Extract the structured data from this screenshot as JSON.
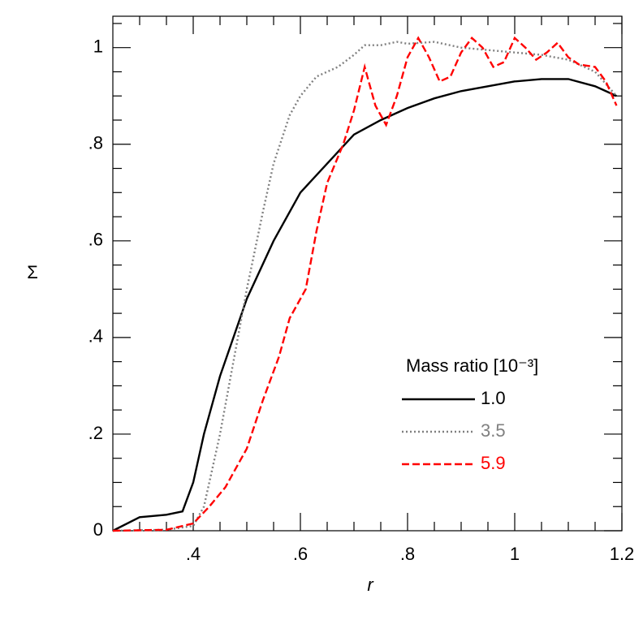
{
  "chart_data": {
    "type": "line",
    "x_label": "r",
    "y_label": "Σ",
    "legend_title": "Mass ratio [10⁻³]",
    "legend_position": "lower right",
    "xlim": [
      0.25,
      1.2
    ],
    "ylim": [
      0,
      1.065
    ],
    "xticks": [
      {
        "value": 0.4,
        "label": ".4"
      },
      {
        "value": 0.6,
        "label": ".6"
      },
      {
        "value": 0.8,
        "label": ".8"
      },
      1,
      1.2
    ],
    "yticks": [
      0,
      {
        "value": 0.2,
        "label": ".2"
      },
      {
        "value": 0.4,
        "label": ".4"
      },
      {
        "value": 0.6,
        "label": ".6"
      },
      {
        "value": 0.8,
        "label": ".8"
      },
      1
    ],
    "series": [
      {
        "name": "1.0",
        "color": "#000000",
        "style": "solid",
        "x": [
          0.25,
          0.3,
          0.35,
          0.38,
          0.4,
          0.42,
          0.45,
          0.5,
          0.55,
          0.6,
          0.65,
          0.7,
          0.75,
          0.8,
          0.85,
          0.9,
          0.95,
          1.0,
          1.05,
          1.1,
          1.15,
          1.19
        ],
        "values": [
          0,
          0.028,
          0.033,
          0.04,
          0.1,
          0.2,
          0.32,
          0.48,
          0.6,
          0.7,
          0.76,
          0.82,
          0.85,
          0.875,
          0.895,
          0.91,
          0.92,
          0.93,
          0.935,
          0.935,
          0.92,
          0.9
        ]
      },
      {
        "name": "3.5",
        "color": "#808080",
        "style": "dotted",
        "x": [
          0.25,
          0.35,
          0.4,
          0.42,
          0.45,
          0.48,
          0.5,
          0.53,
          0.55,
          0.58,
          0.6,
          0.63,
          0.67,
          0.7,
          0.72,
          0.75,
          0.78,
          0.8,
          0.85,
          0.9,
          0.95,
          1.0,
          1.05,
          1.1,
          1.15,
          1.19
        ],
        "values": [
          0,
          0.002,
          0.01,
          0.05,
          0.2,
          0.38,
          0.5,
          0.66,
          0.76,
          0.86,
          0.9,
          0.94,
          0.96,
          0.985,
          1.005,
          1.005,
          1.012,
          1.008,
          1.012,
          1.0,
          0.995,
          0.99,
          0.985,
          0.975,
          0.95,
          0.9
        ]
      },
      {
        "name": "5.9",
        "color": "#ff0000",
        "style": "dashed",
        "x": [
          0.25,
          0.35,
          0.4,
          0.43,
          0.46,
          0.5,
          0.53,
          0.56,
          0.58,
          0.61,
          0.63,
          0.65,
          0.68,
          0.7,
          0.72,
          0.74,
          0.76,
          0.78,
          0.8,
          0.82,
          0.84,
          0.86,
          0.88,
          0.9,
          0.92,
          0.94,
          0.96,
          0.98,
          1.0,
          1.02,
          1.04,
          1.06,
          1.08,
          1.1,
          1.12,
          1.15,
          1.17,
          1.19
        ],
        "values": [
          0,
          0.002,
          0.015,
          0.05,
          0.09,
          0.17,
          0.27,
          0.36,
          0.44,
          0.5,
          0.62,
          0.72,
          0.8,
          0.87,
          0.96,
          0.88,
          0.84,
          0.9,
          0.98,
          1.02,
          0.98,
          0.93,
          0.94,
          0.99,
          1.02,
          1.0,
          0.96,
          0.97,
          1.02,
          1.0,
          0.975,
          0.99,
          1.01,
          0.98,
          0.965,
          0.96,
          0.93,
          0.88
        ]
      }
    ]
  }
}
